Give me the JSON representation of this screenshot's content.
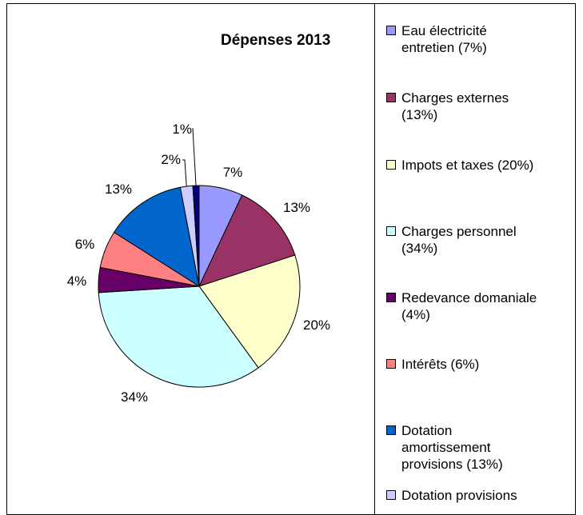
{
  "chart_data": {
    "type": "pie",
    "title": "Dépenses 2013",
    "legend_position": "right",
    "slices": [
      {
        "name": "Eau électricité entretien (7%)",
        "label": "7%",
        "value": 7,
        "color": "#9999ff"
      },
      {
        "name": "Charges externes (13%)",
        "label": "13%",
        "value": 13,
        "color": "#993366"
      },
      {
        "name": "Impots et taxes (20%)",
        "label": "20%",
        "value": 20,
        "color": "#ffffcc"
      },
      {
        "name": "Charges personnel (34%)",
        "label": "34%",
        "value": 34,
        "color": "#ccffff"
      },
      {
        "name": "Redevance domaniale (4%)",
        "label": "4%",
        "value": 4,
        "color": "#660066"
      },
      {
        "name": "Intérêts (6%)",
        "label": "6%",
        "value": 6,
        "color": "#ff8080"
      },
      {
        "name": "Dotation amortissement provisions (13%)",
        "label": "13%",
        "value": 13,
        "color": "#0066cc"
      },
      {
        "name": "Dotation provisions",
        "label": "2%",
        "value": 2,
        "color": "#ccccff"
      },
      {
        "name": "",
        "label": "1%",
        "value": 1,
        "color": "#000080"
      }
    ]
  }
}
